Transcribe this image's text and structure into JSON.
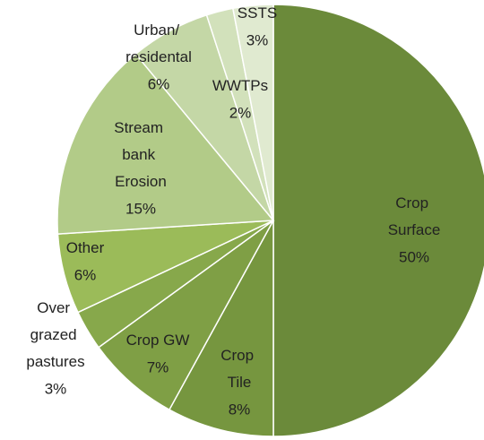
{
  "chart_data": {
    "type": "pie",
    "categories": [
      "Crop Surface",
      "Crop Tile",
      "Crop GW",
      "Over grazed pastures",
      "Other",
      "Stream bank Erosion",
      "Urban/ residental",
      "WWTPs",
      "SSTS"
    ],
    "values": [
      50,
      8,
      7,
      3,
      6,
      15,
      6,
      2,
      3
    ],
    "value_labels": [
      "50%",
      "8%",
      "7%",
      "3%",
      "6%",
      "15%",
      "6%",
      "2%",
      "3%"
    ],
    "colors": [
      "#6b8a3a",
      "#76963f",
      "#7f9f45",
      "#87a84b",
      "#9bbb59",
      "#b2cb88",
      "#c4d7a6",
      "#d2e1bb",
      "#e0ead0"
    ]
  }
}
